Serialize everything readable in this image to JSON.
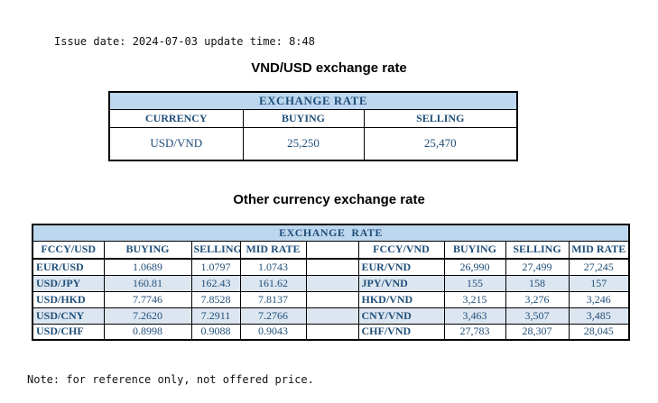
{
  "meta": {
    "issue_line": "Issue date: 2024-07-03 update time: 8:48",
    "note": "Note: for reference only, not offered price."
  },
  "colors": {
    "header_bg": "#BDD7EE",
    "stripe_bg": "#DCE6F1",
    "table_text": "#1F4E79",
    "border": "#000000"
  },
  "table1": {
    "title": "VND/USD exchange rate",
    "header": "EXCHANGE RATE",
    "columns": [
      "CURRENCY",
      "BUYING",
      "SELLING"
    ],
    "rows": [
      [
        "USD/VND",
        "25,250",
        "25,470"
      ]
    ]
  },
  "table2": {
    "title": "Other currency exchange rate",
    "header": "EXCHANGE  RATE",
    "left": {
      "columns": [
        "FCCY/USD",
        "BUYING",
        "SELLING",
        "MID RATE"
      ],
      "rows": [
        [
          "EUR/USD",
          "1.0689",
          "1.0797",
          "1.0743"
        ],
        [
          "USD/JPY",
          "160.81",
          "162.43",
          "161.62"
        ],
        [
          "USD/HKD",
          "7.7746",
          "7.8528",
          "7.8137"
        ],
        [
          "USD/CNY",
          "7.2620",
          "7.2911",
          "7.2766"
        ],
        [
          "USD/CHF",
          "0.8998",
          "0.9088",
          "0.9043"
        ]
      ]
    },
    "right": {
      "columns": [
        "FCCY/VND",
        "BUYING",
        "SELLING",
        "MID RATE"
      ],
      "rows": [
        [
          "EUR/VND",
          "26,990",
          "27,499",
          "27,245"
        ],
        [
          "JPY/VND",
          "155",
          "158",
          "157"
        ],
        [
          "HKD/VND",
          "3,215",
          "3,276",
          "3,246"
        ],
        [
          "CNY/VND",
          "3,463",
          "3,507",
          "3,485"
        ],
        [
          "CHF/VND",
          "27,783",
          "28,307",
          "28,045"
        ]
      ]
    }
  }
}
